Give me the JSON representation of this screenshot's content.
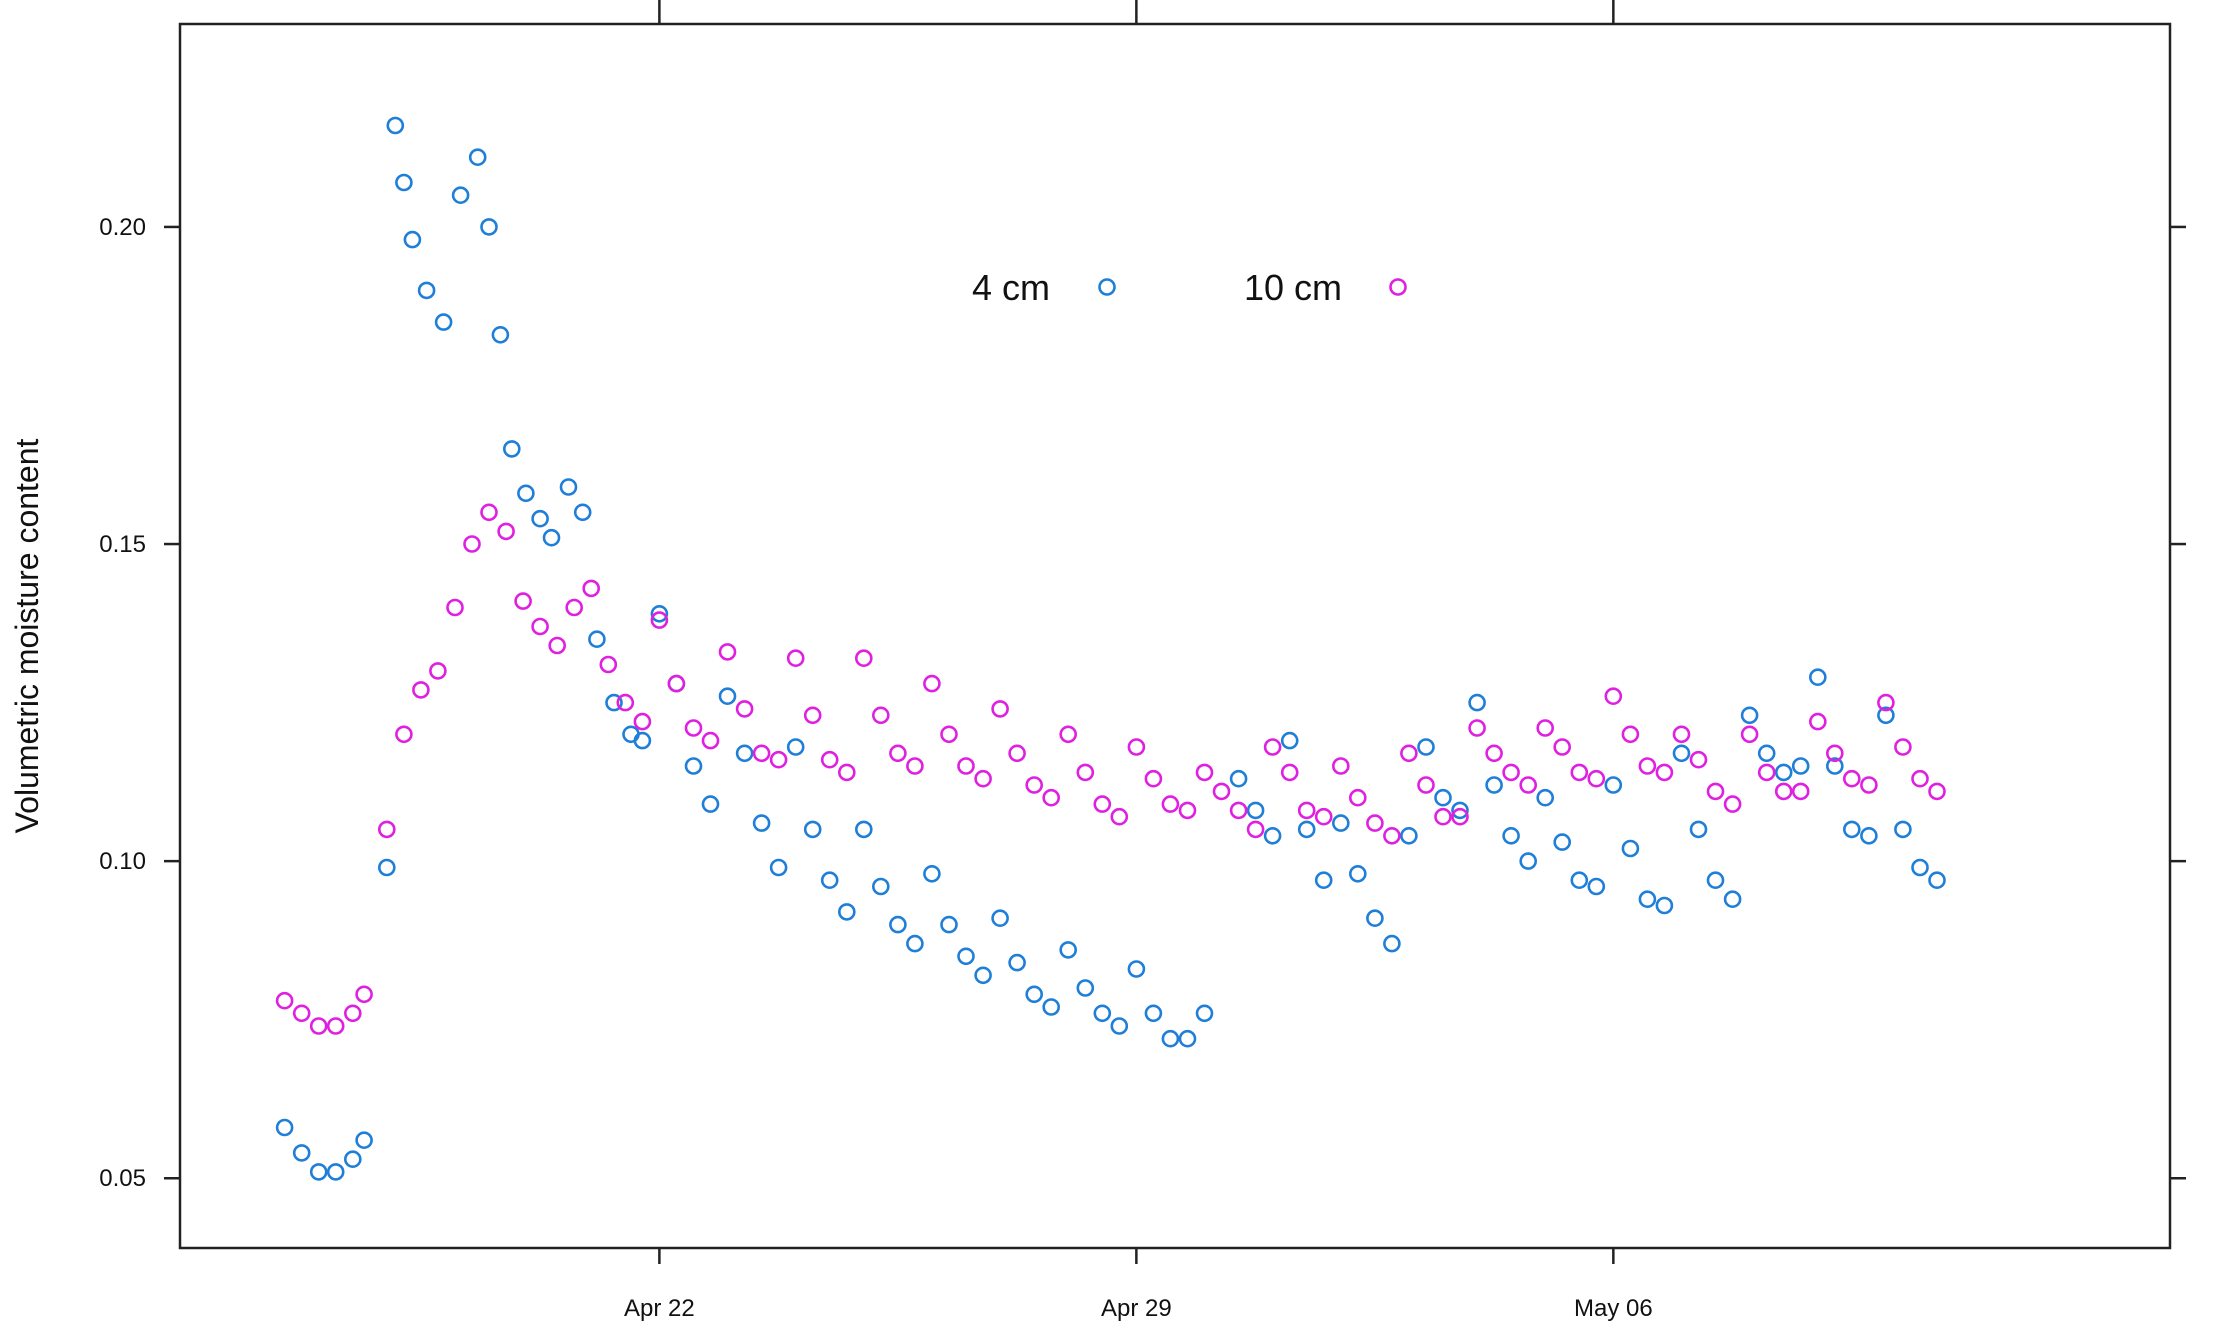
{
  "chart_data": {
    "type": "scatter",
    "title": "",
    "xlabel": "",
    "ylabel": "Volumetric moisture content",
    "x_unit": "date",
    "xlim": [
      "Apr 14 23:09",
      "May 14 04:04"
    ],
    "ylim": [
      0.039,
      0.232
    ],
    "x_ticks": [
      {
        "date": "Apr 22",
        "label": "Apr 22"
      },
      {
        "date": "Apr 29",
        "label": "Apr 29"
      },
      {
        "date": "May 06",
        "label": "May 06"
      }
    ],
    "y_ticks": [
      0.05,
      0.1,
      0.15,
      0.2
    ],
    "y_tick_labels": [
      "0.05",
      "0.10",
      "0.15",
      "0.20"
    ],
    "grid": false,
    "legend": {
      "position": "top-center, inside",
      "entries": [
        {
          "label": "4 cm",
          "color": "#1f7fd8"
        },
        {
          "label": "10 cm",
          "color": "#e020e0"
        }
      ]
    },
    "series": [
      {
        "name": "4 cm",
        "color": "#1f7fd8",
        "marker": "open-circle",
        "points": [
          [
            "Apr 16 12:00",
            0.058
          ],
          [
            "Apr 16 18:00",
            0.054
          ],
          [
            "Apr 17 00:00",
            0.051
          ],
          [
            "Apr 17 06:00",
            0.051
          ],
          [
            "Apr 17 12:00",
            0.053
          ],
          [
            "Apr 17 16:00",
            0.056
          ],
          [
            "Apr 18 00:00",
            0.099
          ],
          [
            "Apr 18 03:00",
            0.216
          ],
          [
            "Apr 18 06:00",
            0.207
          ],
          [
            "Apr 18 09:00",
            0.198
          ],
          [
            "Apr 18 14:00",
            0.19
          ],
          [
            "Apr 18 20:00",
            0.185
          ],
          [
            "Apr 19 02:00",
            0.205
          ],
          [
            "Apr 19 08:00",
            0.211
          ],
          [
            "Apr 19 12:00",
            0.2
          ],
          [
            "Apr 19 16:00",
            0.183
          ],
          [
            "Apr 19 20:00",
            0.165
          ],
          [
            "Apr 20 01:00",
            0.158
          ],
          [
            "Apr 20 06:00",
            0.154
          ],
          [
            "Apr 20 10:00",
            0.151
          ],
          [
            "Apr 20 16:00",
            0.159
          ],
          [
            "Apr 20 21:00",
            0.155
          ],
          [
            "Apr 21 02:00",
            0.135
          ],
          [
            "Apr 21 08:00",
            0.125
          ],
          [
            "Apr 21 14:00",
            0.12
          ],
          [
            "Apr 21 18:00",
            0.119
          ],
          [
            "Apr 22 00:00",
            0.139
          ],
          [
            "Apr 22 06:00",
            0.128
          ],
          [
            "Apr 22 12:00",
            0.115
          ],
          [
            "Apr 22 18:00",
            0.109
          ],
          [
            "Apr 23 00:00",
            0.126
          ],
          [
            "Apr 23 06:00",
            0.117
          ],
          [
            "Apr 23 12:00",
            0.106
          ],
          [
            "Apr 23 18:00",
            0.099
          ],
          [
            "Apr 24 00:00",
            0.118
          ],
          [
            "Apr 24 06:00",
            0.105
          ],
          [
            "Apr 24 12:00",
            0.097
          ],
          [
            "Apr 24 18:00",
            0.092
          ],
          [
            "Apr 25 00:00",
            0.105
          ],
          [
            "Apr 25 06:00",
            0.096
          ],
          [
            "Apr 25 12:00",
            0.09
          ],
          [
            "Apr 25 18:00",
            0.087
          ],
          [
            "Apr 26 00:00",
            0.098
          ],
          [
            "Apr 26 06:00",
            0.09
          ],
          [
            "Apr 26 12:00",
            0.085
          ],
          [
            "Apr 26 18:00",
            0.082
          ],
          [
            "Apr 27 00:00",
            0.091
          ],
          [
            "Apr 27 06:00",
            0.084
          ],
          [
            "Apr 27 12:00",
            0.079
          ],
          [
            "Apr 27 18:00",
            0.077
          ],
          [
            "Apr 28 00:00",
            0.086
          ],
          [
            "Apr 28 06:00",
            0.08
          ],
          [
            "Apr 28 12:00",
            0.076
          ],
          [
            "Apr 28 18:00",
            0.074
          ],
          [
            "Apr 29 00:00",
            0.083
          ],
          [
            "Apr 29 06:00",
            0.076
          ],
          [
            "Apr 29 12:00",
            0.072
          ],
          [
            "Apr 29 18:00",
            0.072
          ],
          [
            "Apr 30 00:00",
            0.076
          ],
          [
            "Apr 30 12:00",
            0.113
          ],
          [
            "Apr 30 18:00",
            0.108
          ],
          [
            "May 01 00:00",
            0.104
          ],
          [
            "May 01 06:00",
            0.119
          ],
          [
            "May 01 12:00",
            0.105
          ],
          [
            "May 01 18:00",
            0.097
          ],
          [
            "May 02 00:00",
            0.106
          ],
          [
            "May 02 06:00",
            0.098
          ],
          [
            "May 02 12:00",
            0.091
          ],
          [
            "May 02 18:00",
            0.087
          ],
          [
            "May 03 00:00",
            0.104
          ],
          [
            "May 03 06:00",
            0.118
          ],
          [
            "May 03 12:00",
            0.11
          ],
          [
            "May 03 18:00",
            0.108
          ],
          [
            "May 04 00:00",
            0.125
          ],
          [
            "May 04 06:00",
            0.112
          ],
          [
            "May 04 12:00",
            0.104
          ],
          [
            "May 04 18:00",
            0.1
          ],
          [
            "May 05 00:00",
            0.11
          ],
          [
            "May 05 06:00",
            0.103
          ],
          [
            "May 05 12:00",
            0.097
          ],
          [
            "May 05 18:00",
            0.096
          ],
          [
            "May 06 00:00",
            0.112
          ],
          [
            "May 06 06:00",
            0.102
          ],
          [
            "May 06 12:00",
            0.094
          ],
          [
            "May 06 18:00",
            0.093
          ],
          [
            "May 07 00:00",
            0.117
          ],
          [
            "May 07 06:00",
            0.105
          ],
          [
            "May 07 12:00",
            0.097
          ],
          [
            "May 07 18:00",
            0.094
          ],
          [
            "May 08 00:00",
            0.123
          ],
          [
            "May 08 06:00",
            0.117
          ],
          [
            "May 08 12:00",
            0.114
          ],
          [
            "May 08 18:00",
            0.115
          ],
          [
            "May 09 00:00",
            0.129
          ],
          [
            "May 09 06:00",
            0.115
          ],
          [
            "May 09 12:00",
            0.105
          ],
          [
            "May 09 18:00",
            0.104
          ],
          [
            "May 10 00:00",
            0.123
          ],
          [
            "May 10 06:00",
            0.105
          ],
          [
            "May 10 12:00",
            0.099
          ],
          [
            "May 10 18:00",
            0.097
          ]
        ]
      },
      {
        "name": "10 cm",
        "color": "#e020e0",
        "marker": "open-circle",
        "points": [
          [
            "Apr 16 12:00",
            0.078
          ],
          [
            "Apr 16 18:00",
            0.076
          ],
          [
            "Apr 17 00:00",
            0.074
          ],
          [
            "Apr 17 06:00",
            0.074
          ],
          [
            "Apr 17 12:00",
            0.076
          ],
          [
            "Apr 17 16:00",
            0.079
          ],
          [
            "Apr 18 00:00",
            0.105
          ],
          [
            "Apr 18 06:00",
            0.12
          ],
          [
            "Apr 18 12:00",
            0.127
          ],
          [
            "Apr 18 18:00",
            0.13
          ],
          [
            "Apr 19 00:00",
            0.14
          ],
          [
            "Apr 19 06:00",
            0.15
          ],
          [
            "Apr 19 12:00",
            0.155
          ],
          [
            "Apr 19 18:00",
            0.152
          ],
          [
            "Apr 20 00:00",
            0.141
          ],
          [
            "Apr 20 06:00",
            0.137
          ],
          [
            "Apr 20 12:00",
            0.134
          ],
          [
            "Apr 20 18:00",
            0.14
          ],
          [
            "Apr 21 00:00",
            0.143
          ],
          [
            "Apr 21 06:00",
            0.131
          ],
          [
            "Apr 21 12:00",
            0.125
          ],
          [
            "Apr 21 18:00",
            0.122
          ],
          [
            "Apr 22 00:00",
            0.138
          ],
          [
            "Apr 22 06:00",
            0.128
          ],
          [
            "Apr 22 12:00",
            0.121
          ],
          [
            "Apr 22 18:00",
            0.119
          ],
          [
            "Apr 23 00:00",
            0.133
          ],
          [
            "Apr 23 06:00",
            0.124
          ],
          [
            "Apr 23 12:00",
            0.117
          ],
          [
            "Apr 23 18:00",
            0.116
          ],
          [
            "Apr 24 00:00",
            0.132
          ],
          [
            "Apr 24 06:00",
            0.123
          ],
          [
            "Apr 24 12:00",
            0.116
          ],
          [
            "Apr 24 18:00",
            0.114
          ],
          [
            "Apr 25 00:00",
            0.132
          ],
          [
            "Apr 25 06:00",
            0.123
          ],
          [
            "Apr 25 12:00",
            0.117
          ],
          [
            "Apr 25 18:00",
            0.115
          ],
          [
            "Apr 26 00:00",
            0.128
          ],
          [
            "Apr 26 06:00",
            0.12
          ],
          [
            "Apr 26 12:00",
            0.115
          ],
          [
            "Apr 26 18:00",
            0.113
          ],
          [
            "Apr 27 00:00",
            0.124
          ],
          [
            "Apr 27 06:00",
            0.117
          ],
          [
            "Apr 27 12:00",
            0.112
          ],
          [
            "Apr 27 18:00",
            0.11
          ],
          [
            "Apr 28 00:00",
            0.12
          ],
          [
            "Apr 28 06:00",
            0.114
          ],
          [
            "Apr 28 12:00",
            0.109
          ],
          [
            "Apr 28 18:00",
            0.107
          ],
          [
            "Apr 29 00:00",
            0.118
          ],
          [
            "Apr 29 06:00",
            0.113
          ],
          [
            "Apr 29 12:00",
            0.109
          ],
          [
            "Apr 29 18:00",
            0.108
          ],
          [
            "Apr 30 00:00",
            0.114
          ],
          [
            "Apr 30 06:00",
            0.111
          ],
          [
            "Apr 30 12:00",
            0.108
          ],
          [
            "Apr 30 18:00",
            0.105
          ],
          [
            "May 01 00:00",
            0.118
          ],
          [
            "May 01 06:00",
            0.114
          ],
          [
            "May 01 12:00",
            0.108
          ],
          [
            "May 01 18:00",
            0.107
          ],
          [
            "May 02 00:00",
            0.115
          ],
          [
            "May 02 06:00",
            0.11
          ],
          [
            "May 02 12:00",
            0.106
          ],
          [
            "May 02 18:00",
            0.104
          ],
          [
            "May 03 00:00",
            0.117
          ],
          [
            "May 03 06:00",
            0.112
          ],
          [
            "May 03 12:00",
            0.107
          ],
          [
            "May 03 18:00",
            0.107
          ],
          [
            "May 04 00:00",
            0.121
          ],
          [
            "May 04 06:00",
            0.117
          ],
          [
            "May 04 12:00",
            0.114
          ],
          [
            "May 04 18:00",
            0.112
          ],
          [
            "May 05 00:00",
            0.121
          ],
          [
            "May 05 06:00",
            0.118
          ],
          [
            "May 05 12:00",
            0.114
          ],
          [
            "May 05 18:00",
            0.113
          ],
          [
            "May 06 00:00",
            0.126
          ],
          [
            "May 06 06:00",
            0.12
          ],
          [
            "May 06 12:00",
            0.115
          ],
          [
            "May 06 18:00",
            0.114
          ],
          [
            "May 07 00:00",
            0.12
          ],
          [
            "May 07 06:00",
            0.116
          ],
          [
            "May 07 12:00",
            0.111
          ],
          [
            "May 07 18:00",
            0.109
          ],
          [
            "May 08 00:00",
            0.12
          ],
          [
            "May 08 06:00",
            0.114
          ],
          [
            "May 08 12:00",
            0.111
          ],
          [
            "May 08 18:00",
            0.111
          ],
          [
            "May 09 00:00",
            0.122
          ],
          [
            "May 09 06:00",
            0.117
          ],
          [
            "May 09 12:00",
            0.113
          ],
          [
            "May 09 18:00",
            0.112
          ],
          [
            "May 10 00:00",
            0.125
          ],
          [
            "May 10 06:00",
            0.118
          ],
          [
            "May 10 12:00",
            0.113
          ],
          [
            "May 10 18:00",
            0.111
          ]
        ]
      }
    ]
  }
}
